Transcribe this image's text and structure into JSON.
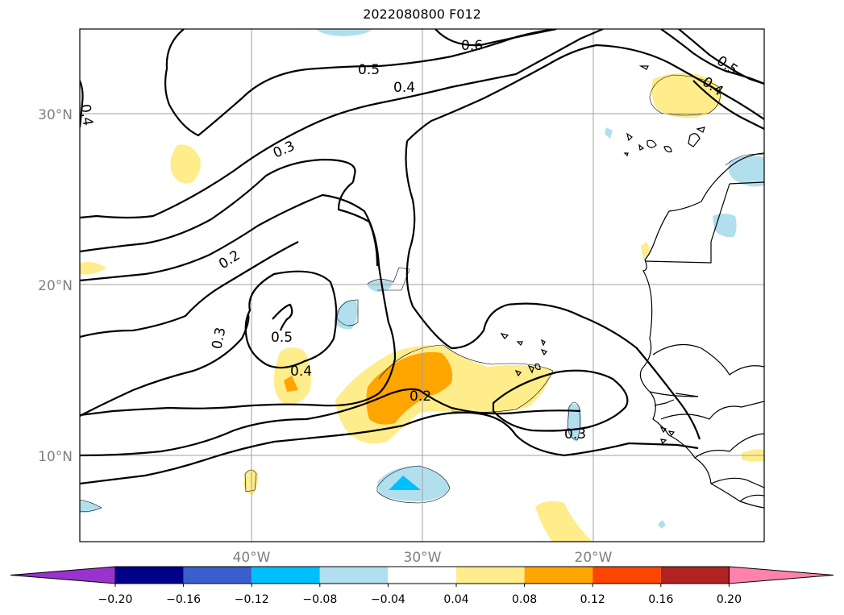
{
  "title": "2022080800 F012",
  "map": {
    "latitude_labels": [
      "30°N",
      "20°N",
      "10°N"
    ],
    "longitude_labels": [
      "40°W",
      "30°W",
      "20°W"
    ],
    "contour_labels": [
      "0.6",
      "0.5",
      "0.4",
      "0.3",
      "0.2",
      "0.5",
      "0.4",
      "0.3",
      "0.2",
      "0.3",
      "0.4",
      "0.5",
      "0.4"
    ]
  },
  "colorbar": {
    "tick_labels": [
      "−0.20",
      "−0.16",
      "−0.12",
      "−0.08",
      "−0.04",
      "0.04",
      "0.08",
      "0.12",
      "0.16",
      "0.20"
    ],
    "colors": [
      "#9a32cd",
      "#00008b",
      "#3a5fcd",
      "#00bfff",
      "#b2dfee",
      "#ffffff",
      "#ffec8b",
      "#ffa500",
      "#ff4500",
      "#b22222",
      "#ff82ab"
    ]
  },
  "shading_colors": {
    "light_blue": "#b2dfee",
    "blue": "#00bfff",
    "light_yellow": "#ffec8b",
    "orange": "#ffa500"
  }
}
